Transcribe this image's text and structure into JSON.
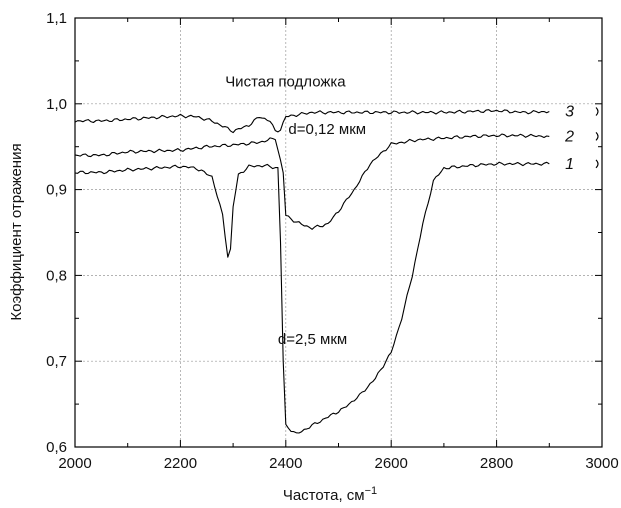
{
  "chart_data": {
    "type": "line",
    "xlabel": "Частота, см",
    "xlabel_sup": "−1",
    "ylabel": "Коэффициент отражения",
    "xlim": [
      2000,
      3000
    ],
    "ylim": [
      0.6,
      1.1
    ],
    "grid": true,
    "x_ticks": [
      {
        "value": 2000,
        "label": "2000"
      },
      {
        "value": 2200,
        "label": "2200"
      },
      {
        "value": 2400,
        "label": "2400"
      },
      {
        "value": 2600,
        "label": "2600"
      },
      {
        "value": 2800,
        "label": "2800"
      },
      {
        "value": 3000,
        "label": "3000"
      }
    ],
    "y_ticks": [
      {
        "value": 0.6,
        "label": "0,6"
      },
      {
        "value": 0.7,
        "label": "0,7"
      },
      {
        "value": 0.8,
        "label": "0,8"
      },
      {
        "value": 0.9,
        "label": "0,9"
      },
      {
        "value": 1.0,
        "label": "1,0"
      },
      {
        "value": 1.1,
        "label": "1,1"
      }
    ],
    "series": [
      {
        "name": "1",
        "x": [
          2000,
          2050,
          2100,
          2150,
          2200,
          2230,
          2260,
          2280,
          2290,
          2295,
          2300,
          2310,
          2330,
          2360,
          2385,
          2390,
          2395,
          2400,
          2420,
          2450,
          2480,
          2510,
          2540,
          2570,
          2600,
          2620,
          2640,
          2660,
          2680,
          2700,
          2750,
          2800,
          2850,
          2900
        ],
        "y": [
          0.92,
          0.92,
          0.923,
          0.925,
          0.927,
          0.925,
          0.915,
          0.87,
          0.822,
          0.83,
          0.88,
          0.917,
          0.927,
          0.928,
          0.925,
          0.84,
          0.7,
          0.625,
          0.615,
          0.625,
          0.635,
          0.645,
          0.66,
          0.68,
          0.71,
          0.75,
          0.8,
          0.86,
          0.91,
          0.925,
          0.928,
          0.93,
          0.93,
          0.93
        ]
      },
      {
        "name": "2",
        "x": [
          2000,
          2050,
          2100,
          2150,
          2200,
          2250,
          2300,
          2350,
          2380,
          2395,
          2400,
          2420,
          2450,
          2480,
          2500,
          2530,
          2560,
          2600,
          2650,
          2700,
          2750,
          2800,
          2850,
          2900
        ],
        "y": [
          0.94,
          0.94,
          0.944,
          0.945,
          0.946,
          0.95,
          0.952,
          0.955,
          0.96,
          0.92,
          0.87,
          0.862,
          0.855,
          0.86,
          0.875,
          0.9,
          0.93,
          0.953,
          0.958,
          0.96,
          0.962,
          0.963,
          0.963,
          0.962
        ]
      },
      {
        "name": "3",
        "x": [
          2000,
          2050,
          2100,
          2150,
          2200,
          2230,
          2260,
          2300,
          2330,
          2350,
          2370,
          2380,
          2390,
          2400,
          2450,
          2500,
          2600,
          2700,
          2800,
          2850,
          2900
        ],
        "y": [
          0.98,
          0.98,
          0.982,
          0.984,
          0.986,
          0.985,
          0.98,
          0.968,
          0.975,
          0.985,
          0.98,
          0.968,
          0.97,
          0.985,
          0.99,
          0.99,
          0.99,
          0.99,
          0.992,
          0.99,
          0.991
        ]
      }
    ],
    "annotations": [
      {
        "text": "Чистая подложка",
        "x": 2285,
        "y": 1.02
      },
      {
        "text": "d=0,12 мкм",
        "x": 2405,
        "y": 0.965
      },
      {
        "text": "d=2,5 мкм",
        "x": 2385,
        "y": 0.72
      }
    ],
    "curve_labels": [
      {
        "text": "3",
        "series": "3"
      },
      {
        "text": "2",
        "series": "2"
      },
      {
        "text": "1",
        "series": "1"
      }
    ]
  }
}
